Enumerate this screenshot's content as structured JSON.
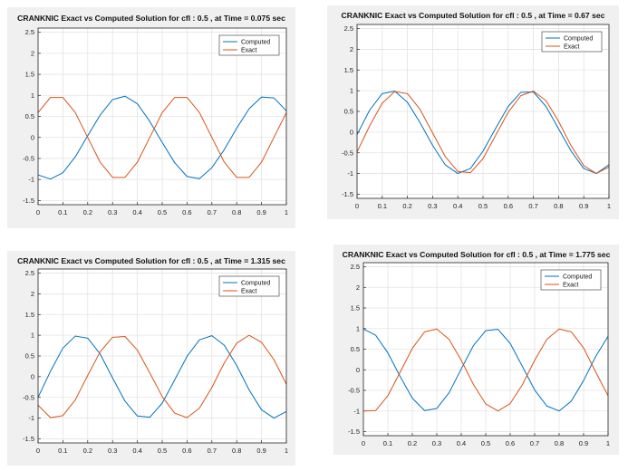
{
  "colors": {
    "computed": "#0072BD",
    "exact": "#D95319",
    "grid": "#e3e3e3",
    "axis": "#262626",
    "figure_bg": "#f0f0f0"
  },
  "panels": [
    {
      "title": "CRANKNIC Exact vs Computed Solution for cfl : 0.5  , at Time = 0.075 sec"
    },
    {
      "title": "CRANKNIC Exact vs Computed Solution for cfl : 0.5  , at Time = 0.67 sec"
    },
    {
      "title": "CRANKNIC Exact vs Computed Solution for cfl : 0.5  , at Time = 1.315 sec"
    },
    {
      "title": "CRANKNIC Exact vs Computed Solution for cfl : 0.5  , at Time = 1.775 sec"
    }
  ],
  "chart_data": [
    {
      "type": "line",
      "title": "CRANKNIC Exact vs Computed Solution for cfl : 0.5  , at Time = 0.075 sec",
      "xlim": [
        0,
        1
      ],
      "ylim": [
        -1.6,
        2.6
      ],
      "xticks": [
        "0",
        "0.1",
        "0.2",
        "0.3",
        "0.4",
        "0.5",
        "0.6",
        "0.7",
        "0.8",
        "0.9",
        "1"
      ],
      "yticks": [
        "2.5",
        "2",
        "1.5",
        "1",
        "0.5",
        "0",
        "-0.5",
        "-1",
        "-1.5"
      ],
      "legend": "top-right",
      "grid": true,
      "x": [
        0,
        0.05,
        0.1,
        0.15,
        0.2,
        0.25,
        0.3,
        0.35,
        0.4,
        0.45,
        0.5,
        0.55,
        0.6,
        0.65,
        0.7,
        0.75,
        0.8,
        0.85,
        0.9,
        0.95,
        1
      ],
      "series": [
        {
          "name": "Computed",
          "values": [
            -0.89,
            -0.99,
            -0.84,
            -0.46,
            0.04,
            0.53,
            0.9,
            0.98,
            0.8,
            0.38,
            -0.12,
            -0.6,
            -0.93,
            -0.98,
            -0.72,
            -0.29,
            0.22,
            0.68,
            0.96,
            0.94,
            0.63
          ]
        },
        {
          "name": "Exact",
          "values": [
            0.59,
            0.95,
            0.95,
            0.59,
            0,
            -0.59,
            -0.95,
            -0.95,
            -0.59,
            0,
            0.59,
            0.95,
            0.95,
            0.59,
            0,
            -0.59,
            -0.95,
            -0.95,
            -0.59,
            0,
            0.59
          ]
        }
      ]
    },
    {
      "type": "line",
      "title": "CRANKNIC Exact vs Computed Solution for cfl : 0.5  , at Time = 0.67 sec",
      "xlim": [
        0,
        1
      ],
      "ylim": [
        -1.6,
        2.6
      ],
      "xticks": [
        "0",
        "0.1",
        "0.2",
        "0.3",
        "0.4",
        "0.5",
        "0.6",
        "0.7",
        "0.8",
        "0.9",
        "1"
      ],
      "yticks": [
        "2.5",
        "2",
        "1.5",
        "1",
        "0.5",
        "0",
        "-0.5",
        "-1",
        "-1.5"
      ],
      "legend": "top-right",
      "grid": true,
      "x": [
        0,
        0.05,
        0.1,
        0.15,
        0.2,
        0.25,
        0.3,
        0.35,
        0.4,
        0.45,
        0.5,
        0.55,
        0.6,
        0.65,
        0.7,
        0.75,
        0.8,
        0.85,
        0.9,
        0.95,
        1
      ],
      "series": [
        {
          "name": "Computed",
          "values": [
            -0.06,
            0.53,
            0.93,
            0.99,
            0.72,
            0.23,
            -0.32,
            -0.79,
            -1.0,
            -0.88,
            -0.46,
            0.09,
            0.62,
            0.96,
            0.97,
            0.62,
            0.08,
            -0.46,
            -0.88,
            -1.0,
            -0.79
          ]
        },
        {
          "name": "Exact",
          "values": [
            -0.48,
            0.15,
            0.7,
            0.98,
            0.93,
            0.55,
            -0.02,
            -0.59,
            -0.95,
            -0.98,
            -0.64,
            -0.08,
            0.48,
            0.88,
            0.99,
            0.76,
            0.26,
            -0.33,
            -0.81,
            -1.0,
            -0.84
          ]
        }
      ]
    },
    {
      "type": "line",
      "title": "CRANKNIC Exact vs Computed Solution for cfl : 0.5  , at Time = 1.315 sec",
      "xlim": [
        0,
        1
      ],
      "ylim": [
        -1.6,
        2.6
      ],
      "xticks": [
        "0",
        "0.1",
        "0.2",
        "0.3",
        "0.4",
        "0.5",
        "0.6",
        "0.7",
        "0.8",
        "0.9",
        "1"
      ],
      "yticks": [
        "2.5",
        "2",
        "1.5",
        "1",
        "0.5",
        "0",
        "-0.5",
        "-1",
        "-1.5"
      ],
      "legend": "top-right",
      "grid": true,
      "x": [
        0,
        0.05,
        0.1,
        0.15,
        0.2,
        0.25,
        0.3,
        0.35,
        0.4,
        0.45,
        0.5,
        0.55,
        0.6,
        0.65,
        0.7,
        0.75,
        0.8,
        0.85,
        0.9,
        0.95,
        1
      ],
      "series": [
        {
          "name": "Computed",
          "values": [
            -0.5,
            0.13,
            0.69,
            0.98,
            0.93,
            0.55,
            -0.03,
            -0.59,
            -0.95,
            -0.98,
            -0.64,
            -0.08,
            0.49,
            0.89,
            0.99,
            0.76,
            0.27,
            -0.32,
            -0.8,
            -1.0,
            -0.84
          ]
        },
        {
          "name": "Exact",
          "values": [
            -0.69,
            -0.99,
            -0.94,
            -0.56,
            0.03,
            0.6,
            0.95,
            0.97,
            0.64,
            0.09,
            -0.48,
            -0.88,
            -0.99,
            -0.76,
            -0.26,
            0.33,
            0.81,
            1.0,
            0.83,
            0.41,
            -0.18
          ]
        }
      ]
    },
    {
      "type": "line",
      "title": "CRANKNIC Exact vs Computed Solution for cfl : 0.5  , at Time = 1.775 sec",
      "xlim": [
        0,
        1
      ],
      "ylim": [
        -1.6,
        2.6
      ],
      "xticks": [
        "0",
        "0.1",
        "0.2",
        "0.3",
        "0.4",
        "0.5",
        "0.6",
        "0.7",
        "0.8",
        "0.9",
        "1"
      ],
      "yticks": [
        "2.5",
        "2",
        "1.5",
        "1",
        "0.5",
        "0",
        "-0.5",
        "-1",
        "-1.5"
      ],
      "legend": "top-right",
      "grid": true,
      "x": [
        0,
        0.05,
        0.1,
        0.15,
        0.2,
        0.25,
        0.3,
        0.35,
        0.4,
        0.45,
        0.5,
        0.55,
        0.6,
        0.65,
        0.7,
        0.75,
        0.8,
        0.85,
        0.9,
        0.95,
        1
      ],
      "series": [
        {
          "name": "Computed",
          "values": [
            0.99,
            0.84,
            0.41,
            -0.16,
            -0.69,
            -0.99,
            -0.94,
            -0.56,
            0.02,
            0.59,
            0.95,
            0.98,
            0.64,
            0.08,
            -0.49,
            -0.88,
            -1.0,
            -0.76,
            -0.26,
            0.33,
            0.81
          ]
        },
        {
          "name": "Exact",
          "values": [
            -1.0,
            -0.99,
            -0.63,
            -0.06,
            0.52,
            0.92,
            0.99,
            0.74,
            0.23,
            -0.36,
            -0.83,
            -1.0,
            -0.82,
            -0.36,
            0.23,
            0.74,
            0.99,
            0.92,
            0.53,
            -0.06,
            -0.63
          ]
        }
      ]
    }
  ]
}
